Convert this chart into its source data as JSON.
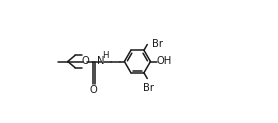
{
  "bg_color": "#ffffff",
  "line_color": "#1a1a1a",
  "line_width": 1.1,
  "font_size": 7.2,
  "figsize": [
    2.78,
    1.23
  ],
  "dpi": 100,
  "xlim": [
    0.0,
    1.0
  ],
  "ylim": [
    0.15,
    0.85
  ]
}
